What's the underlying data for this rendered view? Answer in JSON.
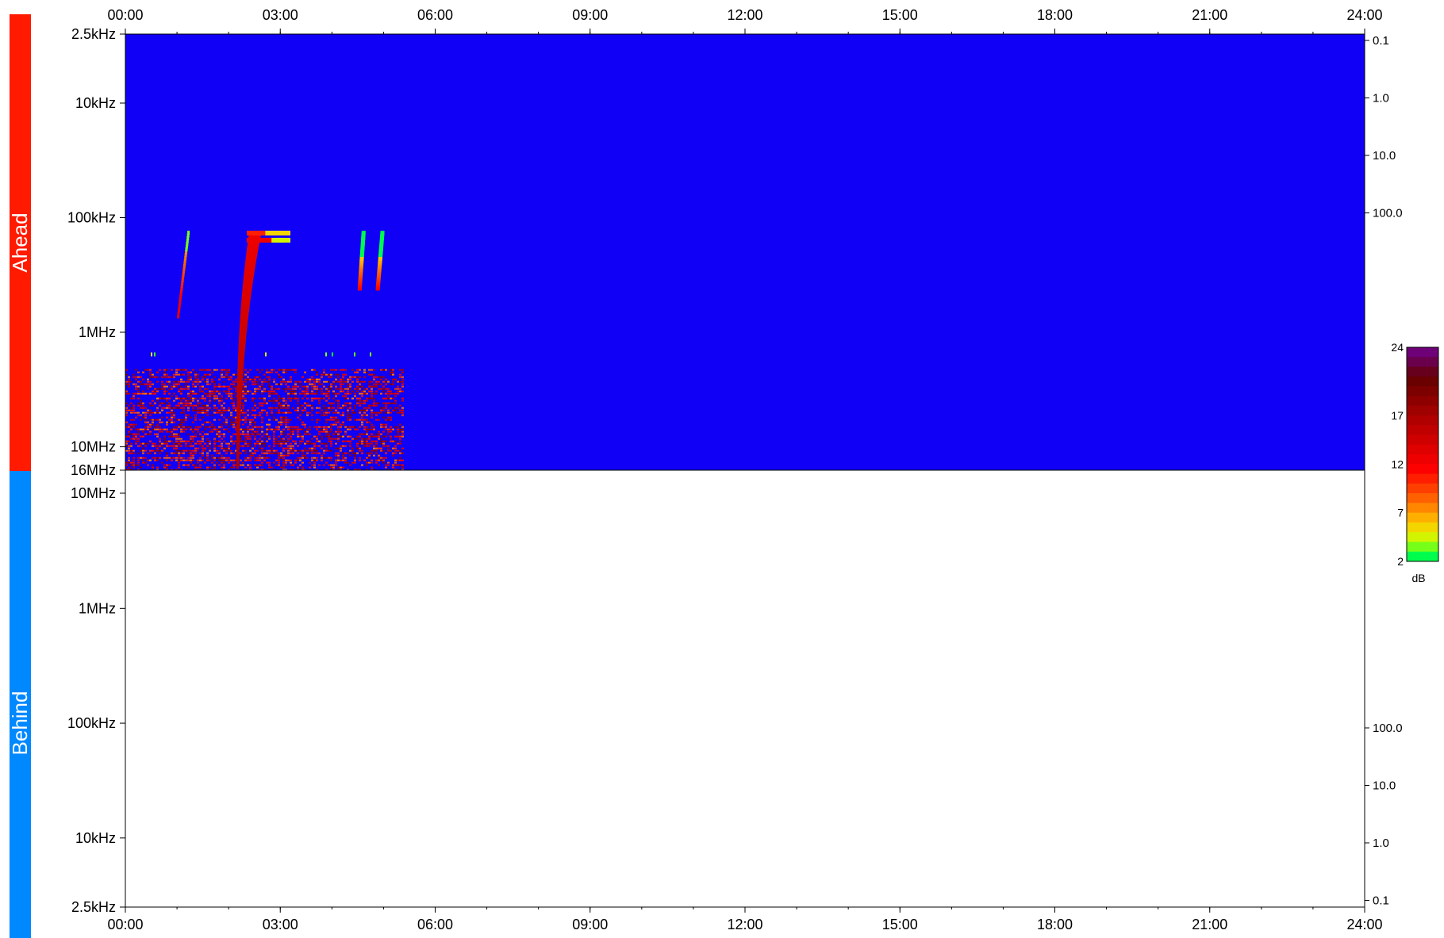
{
  "chart_data": [
    {
      "type": "heatmap",
      "panel": "Ahead",
      "x_ticks": [
        "00:00",
        "03:00",
        "06:00",
        "09:00",
        "12:00",
        "15:00",
        "18:00",
        "21:00",
        "24:00"
      ],
      "xlim": [
        0,
        24
      ],
      "y_scale": "log",
      "y_ticks": [
        "2.5kHz",
        "10kHz",
        "100kHz",
        "1MHz",
        "10MHz",
        "16MHz"
      ],
      "right_axis_ticks": [
        "0.1",
        "1.0",
        "10.0",
        "100.0"
      ],
      "background_color": "#1000f5",
      "data_extent_hours": [
        0,
        5.35
      ],
      "bursts": [
        {
          "start_time_hours": 1.0,
          "end_time_hours": 1.2,
          "freq_range": "approx. 0.7MHz to 0.13MHz",
          "peak_db": 12
        },
        {
          "start_time_hours": 2.15,
          "end_time_hours": 3.05,
          "freq_range": "approx. 16MHz to 0.13MHz",
          "peak_db": 17
        },
        {
          "start_time_hours": 4.5,
          "end_time_hours": 5.3,
          "freq_range": "approx. 0.4MHz to 0.13MHz",
          "peak_db": 12
        }
      ],
      "noise_band": {
        "freq_range": "approx. 2MHz to 16MHz",
        "time_range_hours": [
          0,
          5.35
        ]
      }
    },
    {
      "type": "heatmap",
      "panel": "Behind",
      "x_ticks": [
        "00:00",
        "03:00",
        "06:00",
        "09:00",
        "12:00",
        "15:00",
        "18:00",
        "21:00",
        "24:00"
      ],
      "xlim": [
        0,
        24
      ],
      "y_scale": "log",
      "y_ticks": [
        "10MHz",
        "1MHz",
        "100kHz",
        "10kHz",
        "2.5kHz"
      ],
      "right_axis_ticks": [
        "100.0",
        "10.0",
        "1.0",
        "0.1"
      ],
      "empty": true
    }
  ],
  "panels": {
    "ahead": {
      "label": "Ahead",
      "color": "#ff1a00"
    },
    "behind": {
      "label": "Behind",
      "color": "#0088ff"
    }
  },
  "colorbar": {
    "ticks": [
      "24",
      "17",
      "12",
      "7",
      "2"
    ],
    "unit": "dB",
    "range": [
      2,
      24
    ]
  }
}
